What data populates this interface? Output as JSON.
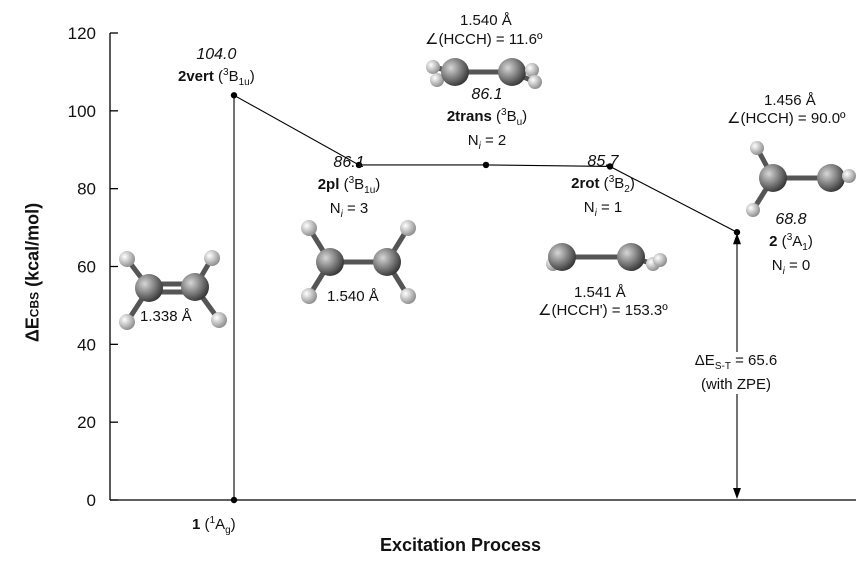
{
  "chart_data": {
    "type": "line",
    "xlabel": "Excitation Process",
    "ylabel_main": "ΔE",
    "ylabel_sub": "CBS",
    "ylabel_unit": "(kcal/mol)",
    "ylim": [
      0,
      120
    ],
    "yticks": [
      "0",
      "20",
      "40",
      "60",
      "80",
      "100",
      "120"
    ],
    "grid": false,
    "series": [
      {
        "values": [
          {
            "x": 0,
            "y": 0
          },
          {
            "x": 0,
            "y": 104.0
          },
          {
            "x": 1,
            "y": 86.1
          },
          {
            "x": 2,
            "y": 86.1
          },
          {
            "x": 3,
            "y": 85.7
          },
          {
            "x": 4,
            "y": 68.8
          }
        ]
      }
    ],
    "points": [
      {
        "name_b": "1",
        "label": " (",
        "sup": "1",
        "main": "A",
        "sub": "g",
        "close": ")"
      },
      {
        "value": "104.0",
        "name_b": "2vert",
        "label": " (",
        "sup": "3",
        "main": "B",
        "sub": "1u",
        "close": ")"
      },
      {
        "value": "86.1",
        "name_b": "2pl",
        "label": " (",
        "sup": "3",
        "main": "B",
        "sub": "1u",
        "close": ")",
        "ni": "N",
        "ni_i": "i",
        "ni_val": " = 3",
        "bond": "1.540 Å"
      },
      {
        "value": "86.1",
        "name_b": "2trans",
        "label": " (",
        "sup": "3",
        "main": "B",
        "sub": "u",
        "close": ")",
        "ni": "N",
        "ni_i": "i",
        "ni_val": " = 2",
        "bond": "1.540 Å",
        "angle": "∠(HCCH) = 11.6º"
      },
      {
        "value": "85.7",
        "name_b": "2rot",
        "label": " (",
        "sup": "3",
        "main": "B",
        "sub": "2",
        "close": ")",
        "ni": "N",
        "ni_i": "i",
        "ni_val": " = 1",
        "bond": "1.541 Å",
        "angle": "∠(HCCH') = 153.3º"
      },
      {
        "value": "68.8",
        "name_b": "2",
        "label": " (",
        "sup": "3",
        "main": "A",
        "sub": "1",
        "close": ")",
        "ni": "N",
        "ni_i": "i",
        "ni_val": " = 0",
        "bond": "1.456 Å",
        "angle": "∠(HCCH) = 90.0º"
      }
    ],
    "ethylene_bond": "1.338 Å",
    "gap": {
      "main": "ΔE",
      "sub": "S-T",
      "value": " = 65.6",
      "note": "(with ZPE)",
      "from": 0,
      "to": 68.8
    }
  }
}
